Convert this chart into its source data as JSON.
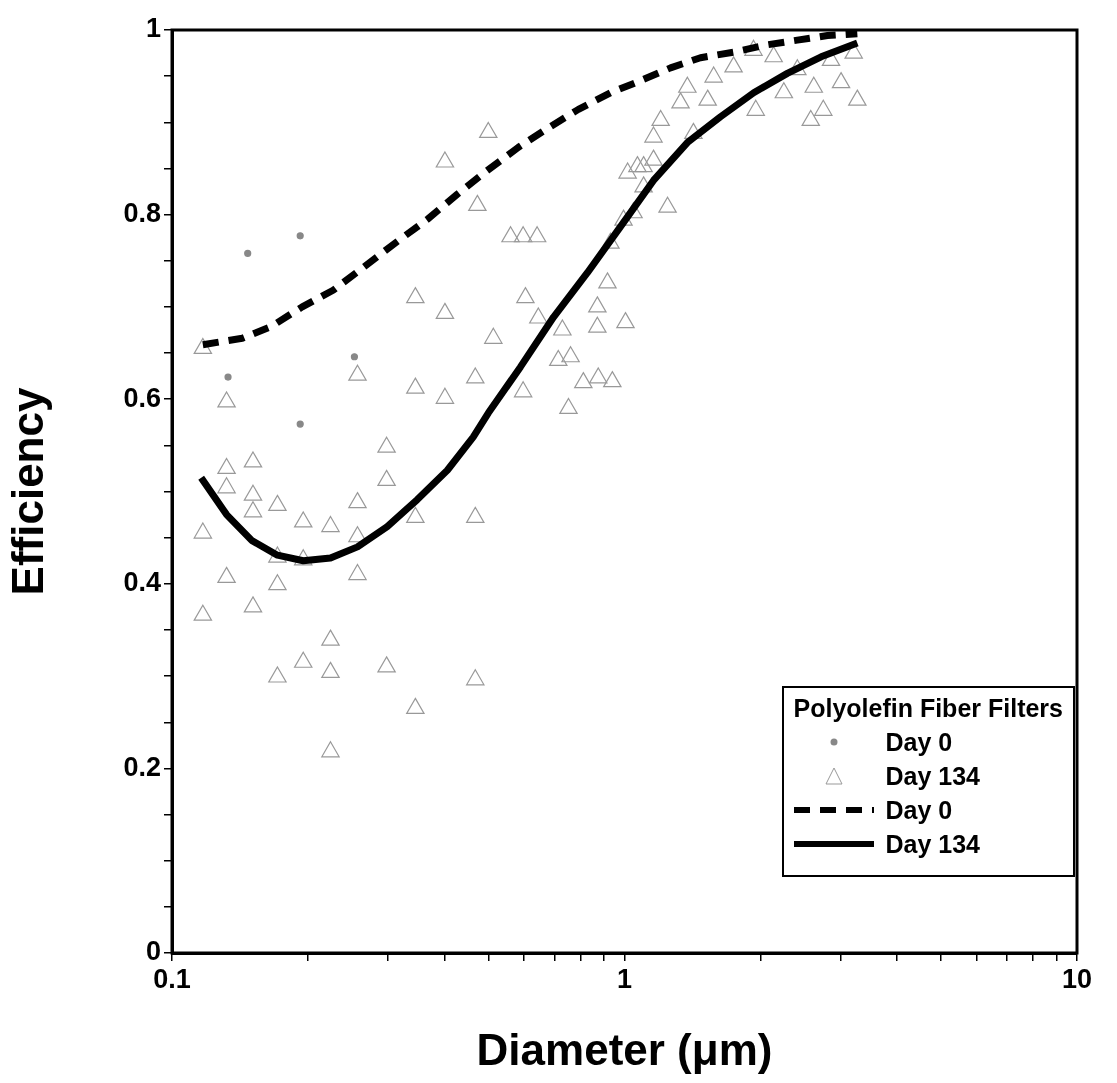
{
  "chart_data": {
    "type": "scatter",
    "xlabel": "Diameter (μm)",
    "ylabel": "Efficiency",
    "legend_title": "Polyolefin Fiber Filters",
    "legend": "bottom right",
    "log": "x",
    "grid": false,
    "xlim": [
      0.1,
      10
    ],
    "ylim": [
      0,
      1
    ],
    "xticks": [
      0.1,
      {
        "value": 0.2,
        "label": null
      },
      {
        "value": 0.3,
        "label": null
      },
      {
        "value": 0.4,
        "label": null
      },
      {
        "value": 0.5,
        "label": null
      },
      {
        "value": 0.6,
        "label": null
      },
      {
        "value": 0.7,
        "label": null
      },
      {
        "value": 0.8,
        "label": null
      },
      {
        "value": 0.9,
        "label": null
      },
      1,
      {
        "value": 2,
        "label": null
      },
      {
        "value": 3,
        "label": null
      },
      {
        "value": 4,
        "label": null
      },
      {
        "value": 5,
        "label": null
      },
      {
        "value": 6,
        "label": null
      },
      {
        "value": 7,
        "label": null
      },
      {
        "value": 8,
        "label": null
      },
      {
        "value": 9,
        "label": null
      },
      10
    ],
    "yticks": [
      0,
      {
        "value": 0.05,
        "label": null
      },
      {
        "value": 0.1,
        "label": null
      },
      {
        "value": 0.15,
        "label": null
      },
      0.2,
      {
        "value": 0.25,
        "label": null
      },
      {
        "value": 0.3,
        "label": null
      },
      {
        "value": 0.35,
        "label": null
      },
      0.4,
      {
        "value": 0.45,
        "label": null
      },
      {
        "value": 0.5,
        "label": null
      },
      {
        "value": 0.55,
        "label": null
      },
      0.6,
      {
        "value": 0.65,
        "label": null
      },
      {
        "value": 0.7,
        "label": null
      },
      {
        "value": 0.75,
        "label": null
      },
      0.8,
      {
        "value": 0.85,
        "label": null
      },
      {
        "value": 0.9,
        "label": null
      },
      {
        "value": 0.95,
        "label": null
      },
      1
    ],
    "series": [
      {
        "name": "Day 0",
        "type": "scatter",
        "marker": "circle",
        "color": "#888888",
        "x": [
          0.147,
          0.192,
          0.253,
          0.133,
          0.192
        ],
        "values": [
          0.758,
          0.777,
          0.646,
          0.624,
          0.573
        ]
      },
      {
        "name": "Day 134",
        "type": "scatter",
        "marker": "triangle",
        "color": "#999999",
        "x": [
          0.132,
          0.151,
          0.132,
          0.151,
          0.151,
          0.171,
          0.195,
          0.224,
          0.257,
          0.257,
          0.298,
          0.298,
          0.345,
          0.468,
          0.117,
          0.171,
          0.195,
          0.132,
          0.171,
          0.257,
          0.117,
          0.151,
          0.224,
          0.195,
          0.224,
          0.171,
          0.298,
          0.468,
          0.345,
          0.224,
          0.117,
          0.132,
          0.257,
          0.345,
          0.401,
          0.468,
          0.401,
          0.473,
          0.345,
          0.401,
          0.5,
          0.597,
          0.641,
          0.56,
          1.245,
          0.513,
          0.604,
          0.645,
          0.729,
          0.871,
          0.871,
          1.005,
          0.714,
          0.76,
          0.597,
          0.811,
          0.875,
          0.94,
          0.752,
          1.016,
          1.102,
          1.159,
          1.047,
          0.995,
          0.931,
          0.917,
          1.159,
          1.202,
          1.33,
          1.377,
          1.527,
          1.574,
          1.742,
          1.928,
          2.136,
          2.25,
          1.95,
          2.58,
          2.75,
          2.62,
          3.01,
          3.27,
          3.21,
          2.86,
          2.41,
          1.42,
          1.102,
          1.068
        ],
        "values": [
          0.525,
          0.532,
          0.504,
          0.496,
          0.478,
          0.485,
          0.467,
          0.462,
          0.488,
          0.451,
          0.548,
          0.512,
          0.472,
          0.472,
          0.455,
          0.429,
          0.426,
          0.407,
          0.399,
          0.41,
          0.366,
          0.375,
          0.339,
          0.315,
          0.304,
          0.299,
          0.31,
          0.296,
          0.265,
          0.218,
          0.655,
          0.597,
          0.626,
          0.612,
          0.601,
          0.623,
          0.857,
          0.81,
          0.71,
          0.693,
          0.889,
          0.776,
          0.776,
          0.776,
          0.808,
          0.666,
          0.71,
          0.688,
          0.675,
          0.7,
          0.678,
          0.683,
          0.642,
          0.646,
          0.608,
          0.618,
          0.623,
          0.619,
          0.59,
          0.845,
          0.852,
          0.859,
          0.802,
          0.794,
          0.769,
          0.726,
          0.884,
          0.902,
          0.921,
          0.938,
          0.924,
          0.949,
          0.96,
          0.978,
          0.971,
          0.932,
          0.913,
          0.902,
          0.913,
          0.938,
          0.943,
          0.924,
          0.975,
          0.967,
          0.957,
          0.888,
          0.83,
          0.852
        ]
      },
      {
        "name": "Day 0",
        "type": "line",
        "line_style": "dashed",
        "color": "#000000",
        "x": [
          0.117,
          0.143,
          0.166,
          0.194,
          0.227,
          0.265,
          0.311,
          0.367,
          0.427,
          0.492,
          0.583,
          0.679,
          0.791,
          0.931,
          1.084,
          1.264,
          1.472,
          1.742,
          2.07,
          2.41,
          2.81,
          3.27
        ],
        "values": [
          0.659,
          0.666,
          0.679,
          0.7,
          0.718,
          0.743,
          0.769,
          0.795,
          0.822,
          0.846,
          0.873,
          0.894,
          0.914,
          0.932,
          0.945,
          0.959,
          0.97,
          0.976,
          0.984,
          0.989,
          0.994,
          0.996
        ]
      },
      {
        "name": "Day 134",
        "type": "line",
        "line_style": "solid",
        "color": "#000000",
        "x": [
          0.116,
          0.132,
          0.15,
          0.171,
          0.195,
          0.224,
          0.257,
          0.299,
          0.348,
          0.406,
          0.463,
          0.5,
          0.589,
          0.697,
          0.828,
          0.98,
          1.159,
          1.377,
          1.63,
          1.93,
          2.29,
          2.72,
          3.27
        ],
        "values": [
          0.515,
          0.475,
          0.447,
          0.431,
          0.425,
          0.428,
          0.44,
          0.462,
          0.491,
          0.523,
          0.559,
          0.585,
          0.635,
          0.689,
          0.737,
          0.787,
          0.837,
          0.878,
          0.906,
          0.932,
          0.953,
          0.971,
          0.986
        ]
      }
    ]
  }
}
